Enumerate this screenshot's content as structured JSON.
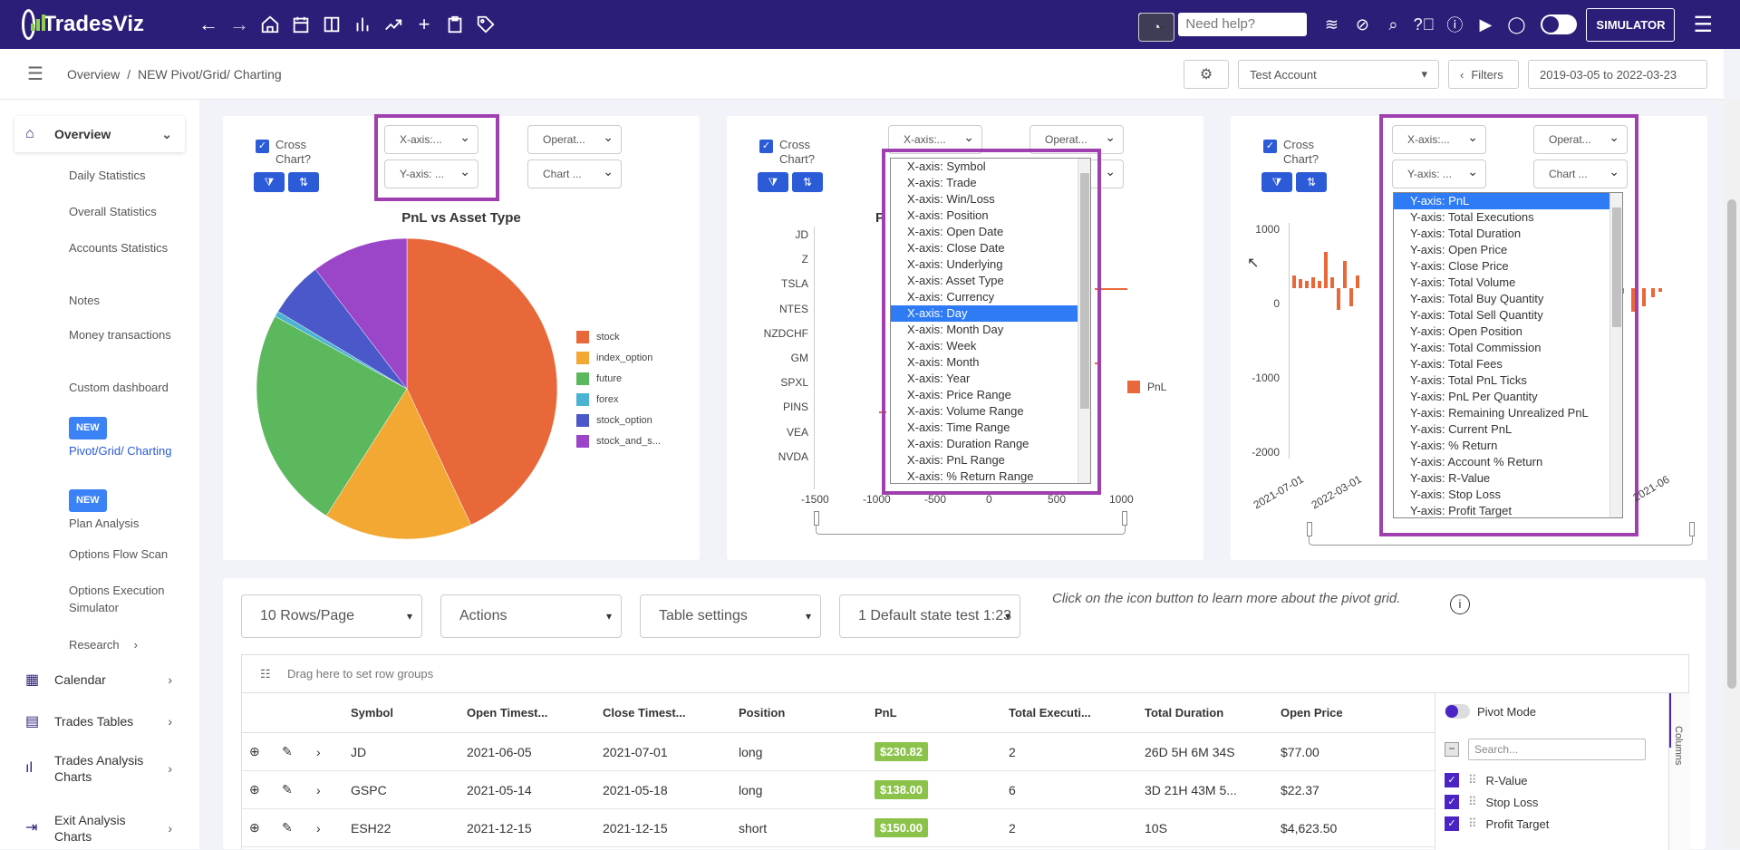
{
  "app": {
    "name": "TradesViz"
  },
  "topbar": {
    "help_placeholder": "Need help?",
    "simulator_label": "SIMULATOR"
  },
  "breadcrumb": {
    "root": "Overview",
    "sep": "/",
    "current": "NEW Pivot/Grid/ Charting"
  },
  "subbar": {
    "account": "Test Account",
    "filters": "Filters",
    "date_range": "2019-03-05 to 2022-03-23"
  },
  "sidebar": {
    "overview": "Overview",
    "subs": [
      "Daily Statistics",
      "Overall Statistics",
      "Accounts Statistics",
      "Notes",
      "Money transactions",
      "Custom dashboard"
    ],
    "new_badge": "NEW",
    "pivot": "Pivot/Grid/ Charting",
    "plan": "Plan Analysis",
    "options_flow": "Options Flow Scan",
    "options_exec": "Options Execution Simulator",
    "research": "Research",
    "calendar": "Calendar",
    "trades_tables": "Trades Tables",
    "trades_analysis": "Trades Analysis Charts",
    "exit_analysis": "Exit Analysis Charts"
  },
  "charts": {
    "cross_label_1": "Cross",
    "cross_label_2": "Chart?",
    "xaxis_short": "X-axis:...",
    "yaxis_short": "Y-axis: ...",
    "oper_short": "Operat...",
    "chart_short": "Chart ...",
    "pie_title": "PnL vs Asset Type",
    "pie_legend": [
      "stock",
      "index_option",
      "future",
      "forex",
      "stock_option",
      "stock_and_s..."
    ],
    "bar_legend": "PnL",
    "bar_ylabels": [
      "JD",
      "Z",
      "TSLA",
      "NTES",
      "NZDCHF",
      "GM",
      "SPXL",
      "PINS",
      "VEA",
      "NVDA"
    ],
    "bar_xticks": [
      "-1500",
      "-1000",
      "-500",
      "0",
      "500",
      "1000"
    ],
    "ts_yticks": [
      "1000",
      "0",
      "-1000",
      "-2000"
    ],
    "ts_xticks": [
      "2021-07-01",
      "2022-03-01",
      "2021-06"
    ]
  },
  "chart_data": [
    {
      "type": "pie",
      "title": "PnL vs Asset Type",
      "categories": [
        "stock",
        "index_option",
        "future",
        "forex",
        "stock_option",
        "stock_and_s..."
      ],
      "values": [
        43,
        16,
        24,
        0.6,
        6,
        10.4
      ]
    }
  ],
  "xaxis_options": [
    "X-axis: Symbol",
    "X-axis: Trade",
    "X-axis: Win/Loss",
    "X-axis: Position",
    "X-axis: Open Date",
    "X-axis: Close Date",
    "X-axis: Underlying",
    "X-axis: Asset Type",
    "X-axis: Currency",
    "X-axis: Day",
    "X-axis: Month Day",
    "X-axis: Week",
    "X-axis: Month",
    "X-axis: Year",
    "X-axis: Price Range",
    "X-axis: Volume Range",
    "X-axis: Time Range",
    "X-axis: Duration Range",
    "X-axis: PnL Range",
    "X-axis: % Return Range"
  ],
  "yaxis_options": [
    "Y-axis: PnL",
    "Y-axis: Total Executions",
    "Y-axis: Total Duration",
    "Y-axis: Open Price",
    "Y-axis: Close Price",
    "Y-axis: Total Volume",
    "Y-axis: Total Buy Quantity",
    "Y-axis: Total Sell Quantity",
    "Y-axis: Open Position",
    "Y-axis: Total Commission",
    "Y-axis: Total Fees",
    "Y-axis: Total PnL Ticks",
    "Y-axis: PnL Per Quantity",
    "Y-axis: Remaining Unrealized PnL",
    "Y-axis: Current PnL",
    "Y-axis: % Return",
    "Y-axis: Account % Return",
    "Y-axis: R-Value",
    "Y-axis: Stop Loss",
    "Y-axis: Profit Target"
  ],
  "grid": {
    "rows_per_page": "10 Rows/Page",
    "actions": "Actions",
    "table_settings": "Table settings",
    "state": "1 Default state test 1:23",
    "hint": "Click on the icon button to learn more about the pivot grid.",
    "group_hint": "Drag here to set row groups",
    "headers": [
      "Symbol",
      "Open Timest...",
      "Close Timest...",
      "Position",
      "PnL",
      "Total Executi...",
      "Total Duration",
      "Open Price"
    ],
    "rows": [
      [
        "JD",
        "2021-06-05",
        "2021-07-01",
        "long",
        "$230.82",
        "2",
        "26D 5H 6M 34S",
        "$77.00"
      ],
      [
        "GSPC",
        "2021-05-14",
        "2021-05-18",
        "long",
        "$138.00",
        "6",
        "3D 21H 43M 5...",
        "$22.37"
      ],
      [
        "ESH22",
        "2021-12-15",
        "2021-12-15",
        "short",
        "$150.00",
        "2",
        "10S",
        "$4,623.50"
      ]
    ],
    "pivot_mode": "Pivot Mode",
    "search_placeholder": "Search...",
    "columns_tab": "Columns",
    "column_list": [
      "R-Value",
      "Stop Loss",
      "Profit Target"
    ]
  },
  "colors": {
    "brand": "#2b1e78",
    "accent": "#2b5bd7",
    "highlight": "#a040b0",
    "bar": "#e8683a"
  }
}
